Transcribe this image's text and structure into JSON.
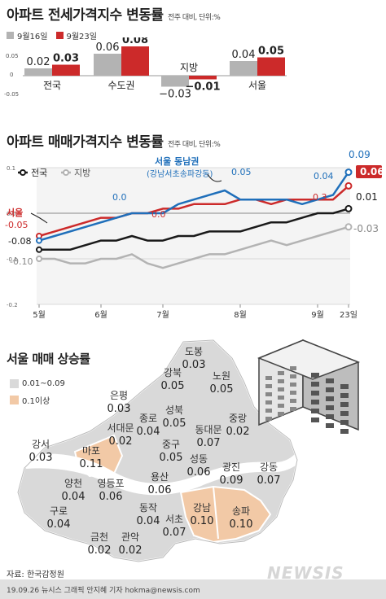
{
  "colors": {
    "prev": "#b3b3b3",
    "curr": "#cc2a2a",
    "national": "#1a1a1a",
    "prov": "#b3b3b3",
    "seoul": "#cc2a2a",
    "southeast": "#1f6fba",
    "map_low": "#d9d9d9",
    "map_high": "#f2c9a6"
  },
  "chart1": {
    "title": "아파트 전세가격지수 변동률",
    "unit": "전주 대비, 단위:%",
    "legend": [
      "9월16일",
      "9월23일"
    ],
    "yticks": [
      "0.05",
      "0",
      "-0.05"
    ]
  },
  "chart2": {
    "title": "아파트 매매가격지수 변동률",
    "unit": "전주 대비, 단위:%",
    "legend_national": "전국",
    "legend_prov": "지방",
    "yticks": [
      "0.1",
      "0.0",
      "-0.1",
      "-0.2"
    ],
    "xticks": [
      "5월",
      "6월",
      "7월",
      "8월",
      "9월",
      "23일"
    ],
    "seoul_label": "서울",
    "southeast_label": "서울 동남권",
    "southeast_sub": "(강남서초송파강동)",
    "annotations": [
      "0.0",
      "0.0",
      "0.05",
      "0.04",
      "0.3",
      "-0.05",
      "-0.08",
      "-0.10",
      "0.09",
      "0.06",
      "0.01",
      "-0.03"
    ]
  },
  "map": {
    "title": "서울 매매 상승률",
    "legend_low": "0.01~0.09",
    "legend_high": "0.1이상",
    "districts": [
      {
        "name": "도봉",
        "value": "0.03",
        "high": false
      },
      {
        "name": "강북",
        "value": "0.05",
        "high": false
      },
      {
        "name": "노원",
        "value": "0.05",
        "high": false
      },
      {
        "name": "은평",
        "value": "0.03",
        "high": false
      },
      {
        "name": "종로",
        "value": "0.04",
        "high": false
      },
      {
        "name": "성북",
        "value": "0.05",
        "high": false
      },
      {
        "name": "중랑",
        "value": "0.02",
        "high": false
      },
      {
        "name": "서대문",
        "value": "0.02",
        "high": false
      },
      {
        "name": "동대문",
        "value": "0.07",
        "high": false
      },
      {
        "name": "강서",
        "value": "0.03",
        "high": false
      },
      {
        "name": "마포",
        "value": "0.11",
        "high": true
      },
      {
        "name": "중구",
        "value": "0.05",
        "high": false
      },
      {
        "name": "성동",
        "value": "0.06",
        "high": false
      },
      {
        "name": "광진",
        "value": "0.09",
        "high": false
      },
      {
        "name": "강동",
        "value": "0.07",
        "high": false
      },
      {
        "name": "양천",
        "value": "0.04",
        "high": false
      },
      {
        "name": "영등포",
        "value": "0.06",
        "high": false
      },
      {
        "name": "용산",
        "value": "0.06",
        "high": false
      },
      {
        "name": "구로",
        "value": "0.04",
        "high": false
      },
      {
        "name": "동작",
        "value": "0.04",
        "high": false
      },
      {
        "name": "서초",
        "value": "0.07",
        "high": false
      },
      {
        "name": "강남",
        "value": "0.10",
        "high": true
      },
      {
        "name": "송파",
        "value": "0.10",
        "high": true
      },
      {
        "name": "금천",
        "value": "0.02",
        "high": false
      },
      {
        "name": "관악",
        "value": "0.02",
        "high": false
      }
    ]
  },
  "source": "자료: 한국감정원",
  "credit": "19.09.26 뉴시스 그래픽 안지혜 기자 hokma@newsis.com",
  "watermark": "NEWSIS",
  "chart_data": [
    {
      "type": "bar",
      "title": "아파트 전세가격지수 변동률",
      "unit": "전주 대비, 단위:%",
      "categories": [
        "전국",
        "수도권",
        "지방",
        "서울"
      ],
      "series": [
        {
          "name": "9월16일",
          "values": [
            0.02,
            0.06,
            -0.03,
            0.04
          ]
        },
        {
          "name": "9월23일",
          "values": [
            0.03,
            0.08,
            -0.01,
            0.05
          ]
        }
      ],
      "ylim": [
        -0.05,
        0.08
      ]
    },
    {
      "type": "line",
      "title": "아파트 매매가격지수 변동률",
      "unit": "전주 대비, 단위:%",
      "ylim": [
        -0.2,
        0.1
      ],
      "x_ticks": [
        "5월",
        "6월",
        "7월",
        "8월",
        "9월",
        "23일"
      ],
      "n_weeks": 21,
      "series": [
        {
          "name": "서울 동남권",
          "values": [
            -0.06,
            -0.05,
            -0.04,
            -0.03,
            -0.02,
            -0.01,
            0.0,
            0.0,
            0.0,
            0.02,
            0.03,
            0.04,
            0.05,
            0.03,
            0.03,
            0.03,
            0.03,
            0.02,
            0.03,
            0.04,
            0.09
          ]
        },
        {
          "name": "서울",
          "values": [
            -0.05,
            -0.04,
            -0.03,
            -0.02,
            -0.01,
            -0.01,
            0.0,
            0.0,
            0.01,
            0.01,
            0.02,
            0.02,
            0.02,
            0.03,
            0.03,
            0.02,
            0.03,
            0.03,
            0.03,
            0.03,
            0.06
          ]
        },
        {
          "name": "전국",
          "values": [
            -0.08,
            -0.08,
            -0.08,
            -0.07,
            -0.06,
            -0.06,
            -0.05,
            -0.06,
            -0.06,
            -0.05,
            -0.05,
            -0.04,
            -0.04,
            -0.04,
            -0.03,
            -0.02,
            -0.02,
            -0.01,
            0.0,
            0.0,
            0.01
          ]
        },
        {
          "name": "지방",
          "values": [
            -0.1,
            -0.1,
            -0.11,
            -0.11,
            -0.1,
            -0.1,
            -0.09,
            -0.11,
            -0.12,
            -0.11,
            -0.1,
            -0.09,
            -0.09,
            -0.08,
            -0.07,
            -0.06,
            -0.07,
            -0.06,
            -0.05,
            -0.04,
            -0.03
          ]
        }
      ]
    }
  ]
}
